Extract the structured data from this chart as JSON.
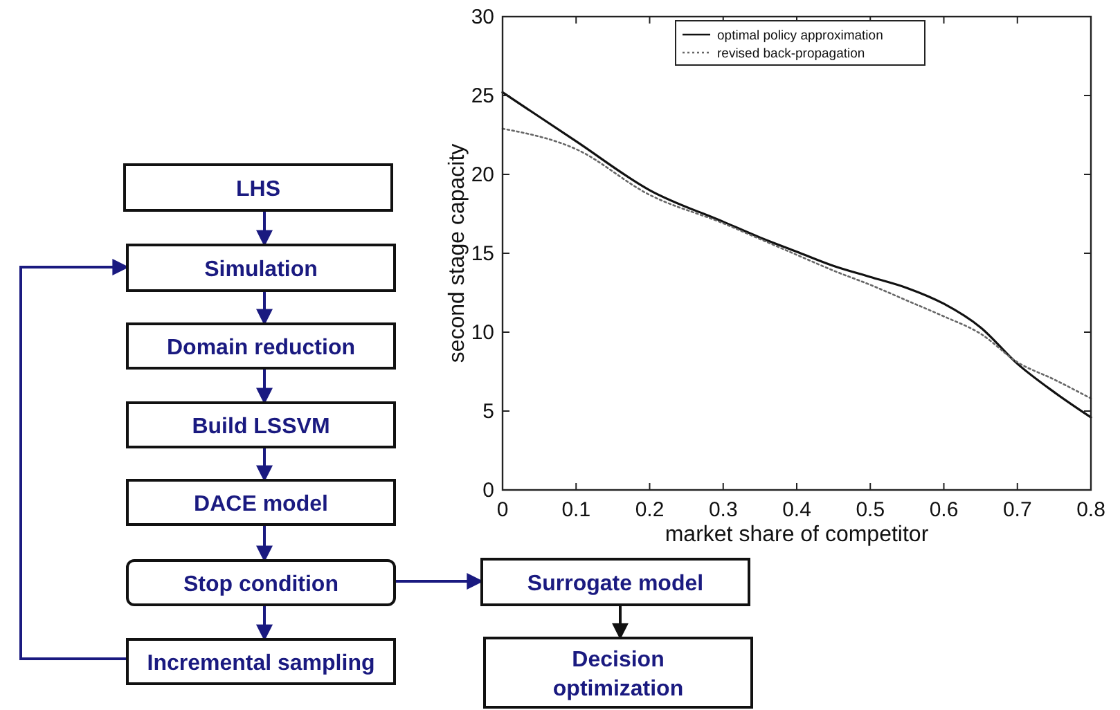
{
  "chart_data": [
    {
      "type": "line",
      "xlabel": "market share of competitor",
      "ylabel": "second stage capacity",
      "xlim": [
        0,
        0.8
      ],
      "ylim": [
        0,
        30
      ],
      "xticks": [
        0,
        0.1,
        0.2,
        0.3,
        0.4,
        0.5,
        0.6,
        0.7,
        0.8
      ],
      "yticks": [
        0,
        5,
        10,
        15,
        20,
        25,
        30
      ],
      "grid": false,
      "legend": "top right",
      "x": [
        0,
        0.1,
        0.2,
        0.3,
        0.35,
        0.4,
        0.45,
        0.5,
        0.55,
        0.6,
        0.65,
        0.7,
        0.75,
        0.8
      ],
      "series": [
        {
          "name": "optimal policy approximation",
          "color": "#111111",
          "line_style": "solid",
          "values": [
            25.2,
            22.1,
            19.0,
            17.0,
            16.0,
            15.1,
            14.2,
            13.5,
            12.8,
            11.8,
            10.3,
            8.0,
            6.2,
            4.6
          ]
        },
        {
          "name": "revised back-propagation",
          "color": "#666666",
          "line_style": "dotted",
          "values": [
            22.9,
            21.6,
            18.7,
            16.9,
            15.9,
            14.9,
            13.9,
            13.0,
            12.0,
            11.0,
            9.9,
            8.1,
            7.0,
            5.8
          ]
        }
      ]
    },
    {
      "type": "other",
      "annotations": [
        "LHS",
        "Simulation",
        "Domain reduction",
        "Build LSSVM",
        "DACE model",
        "Stop condition",
        "Incremental sampling",
        "Surrogate model",
        "Decision optimization"
      ]
    }
  ]
}
